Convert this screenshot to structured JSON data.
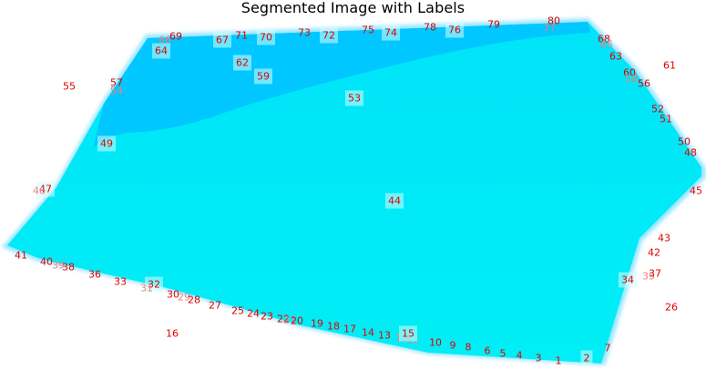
{
  "title": "Segmented Image with Labels",
  "colors": {
    "background": "#ffffff",
    "main_region": "#00ecf6",
    "upper_region": "#00c7ff",
    "edge_glow": "#7fe0ff",
    "label_text": "#e00000",
    "label_text_faint": "#f07f7f"
  },
  "labels": [
    {
      "text": "69",
      "style": "normal"
    },
    {
      "text": "66",
      "style": "faint"
    },
    {
      "text": "64",
      "style": "hl"
    },
    {
      "text": "67",
      "style": "hl"
    },
    {
      "text": "71",
      "style": "normal"
    },
    {
      "text": "70",
      "style": "hl"
    },
    {
      "text": "73",
      "style": "normal"
    },
    {
      "text": "72",
      "style": "hl"
    },
    {
      "text": "75",
      "style": "normal"
    },
    {
      "text": "74",
      "style": "hl"
    },
    {
      "text": "78",
      "style": "normal"
    },
    {
      "text": "76",
      "style": "hl"
    },
    {
      "text": "79",
      "style": "normal"
    },
    {
      "text": "80",
      "style": "normal"
    },
    {
      "text": "77",
      "style": "faint"
    },
    {
      "text": "68",
      "style": "normal"
    },
    {
      "text": "65",
      "style": "faint"
    },
    {
      "text": "63",
      "style": "normal"
    },
    {
      "text": "61",
      "style": "normal"
    },
    {
      "text": "60",
      "style": "normal"
    },
    {
      "text": "58",
      "style": "faint"
    },
    {
      "text": "56",
      "style": "normal"
    },
    {
      "text": "62",
      "style": "hl"
    },
    {
      "text": "59",
      "style": "hl"
    },
    {
      "text": "55",
      "style": "normal"
    },
    {
      "text": "57",
      "style": "normal"
    },
    {
      "text": "54",
      "style": "faint"
    },
    {
      "text": "53",
      "style": "hl"
    },
    {
      "text": "52",
      "style": "normal"
    },
    {
      "text": "51",
      "style": "normal"
    },
    {
      "text": "50",
      "style": "normal"
    },
    {
      "text": "48",
      "style": "normal"
    },
    {
      "text": "49",
      "style": "hl"
    },
    {
      "text": "47",
      "style": "hl"
    },
    {
      "text": "46",
      "style": "faint"
    },
    {
      "text": "44",
      "style": "hl"
    },
    {
      "text": "45",
      "style": "normal"
    },
    {
      "text": "43",
      "style": "normal"
    },
    {
      "text": "42",
      "style": "normal"
    },
    {
      "text": "41",
      "style": "normal"
    },
    {
      "text": "40",
      "style": "normal"
    },
    {
      "text": "39",
      "style": "faint"
    },
    {
      "text": "38",
      "style": "normal"
    },
    {
      "text": "36",
      "style": "normal"
    },
    {
      "text": "33",
      "style": "normal"
    },
    {
      "text": "32",
      "style": "hl"
    },
    {
      "text": "31",
      "style": "faint"
    },
    {
      "text": "34",
      "style": "hl"
    },
    {
      "text": "35",
      "style": "faint"
    },
    {
      "text": "37",
      "style": "normal"
    },
    {
      "text": "30",
      "style": "normal"
    },
    {
      "text": "29",
      "style": "faint"
    },
    {
      "text": "28",
      "style": "normal"
    },
    {
      "text": "27",
      "style": "normal"
    },
    {
      "text": "26",
      "style": "normal"
    },
    {
      "text": "25",
      "style": "normal"
    },
    {
      "text": "24",
      "style": "normal"
    },
    {
      "text": "23",
      "style": "normal"
    },
    {
      "text": "22",
      "style": "normal"
    },
    {
      "text": "21",
      "style": "faint"
    },
    {
      "text": "20",
      "style": "normal"
    },
    {
      "text": "19",
      "style": "normal"
    },
    {
      "text": "18",
      "style": "normal"
    },
    {
      "text": "17",
      "style": "normal"
    },
    {
      "text": "16",
      "style": "normal"
    },
    {
      "text": "14",
      "style": "normal"
    },
    {
      "text": "13",
      "style": "normal"
    },
    {
      "text": "12",
      "style": "faint"
    },
    {
      "text": "11",
      "style": "faint"
    },
    {
      "text": "15",
      "style": "hl"
    },
    {
      "text": "10",
      "style": "normal"
    },
    {
      "text": "9",
      "style": "normal"
    },
    {
      "text": "8",
      "style": "normal"
    },
    {
      "text": "6",
      "style": "normal"
    },
    {
      "text": "5",
      "style": "normal"
    },
    {
      "text": "4",
      "style": "normal"
    },
    {
      "text": "3",
      "style": "normal"
    },
    {
      "text": "1",
      "style": "normal"
    },
    {
      "text": "2",
      "style": "hl"
    },
    {
      "text": "7",
      "style": "normal"
    }
  ]
}
